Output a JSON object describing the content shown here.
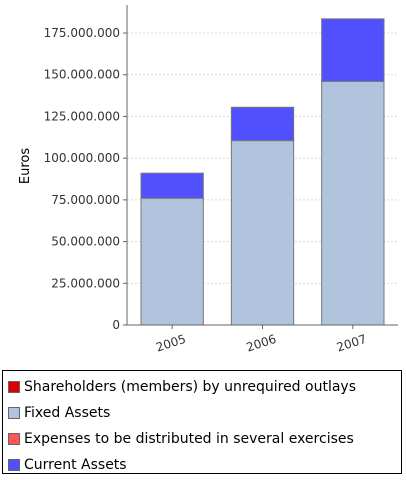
{
  "chart_data": {
    "type": "bar",
    "stacked": true,
    "categories": [
      "2005",
      "2006",
      "2007"
    ],
    "ylabel": "Euros",
    "xlabel": "",
    "ylim": [
      0,
      190000000
    ],
    "yticks": [
      0,
      25000000,
      50000000,
      75000000,
      100000000,
      125000000,
      150000000,
      175000000
    ],
    "ytick_labels": [
      "0",
      "25.000.000",
      "50.000.000",
      "75.000.000",
      "100.000.000",
      "125.000.000",
      "150.000.000",
      "175.000.000"
    ],
    "grid": true,
    "legend_position": "bottom",
    "series": [
      {
        "name": "Shareholders (members) by unrequired outlays",
        "values": [
          0,
          0,
          0
        ],
        "color": "#dd0000"
      },
      {
        "name": "Fixed Assets",
        "values": [
          76000000,
          110500000,
          146000000
        ],
        "color": "#b0c4de"
      },
      {
        "name": "Expenses to be distributed in several exercises",
        "values": [
          0,
          0,
          0
        ],
        "color": "#ff5555"
      },
      {
        "name": "Current Assets",
        "values": [
          15000000,
          20000000,
          37500000
        ],
        "color": "#5050ff"
      }
    ]
  }
}
